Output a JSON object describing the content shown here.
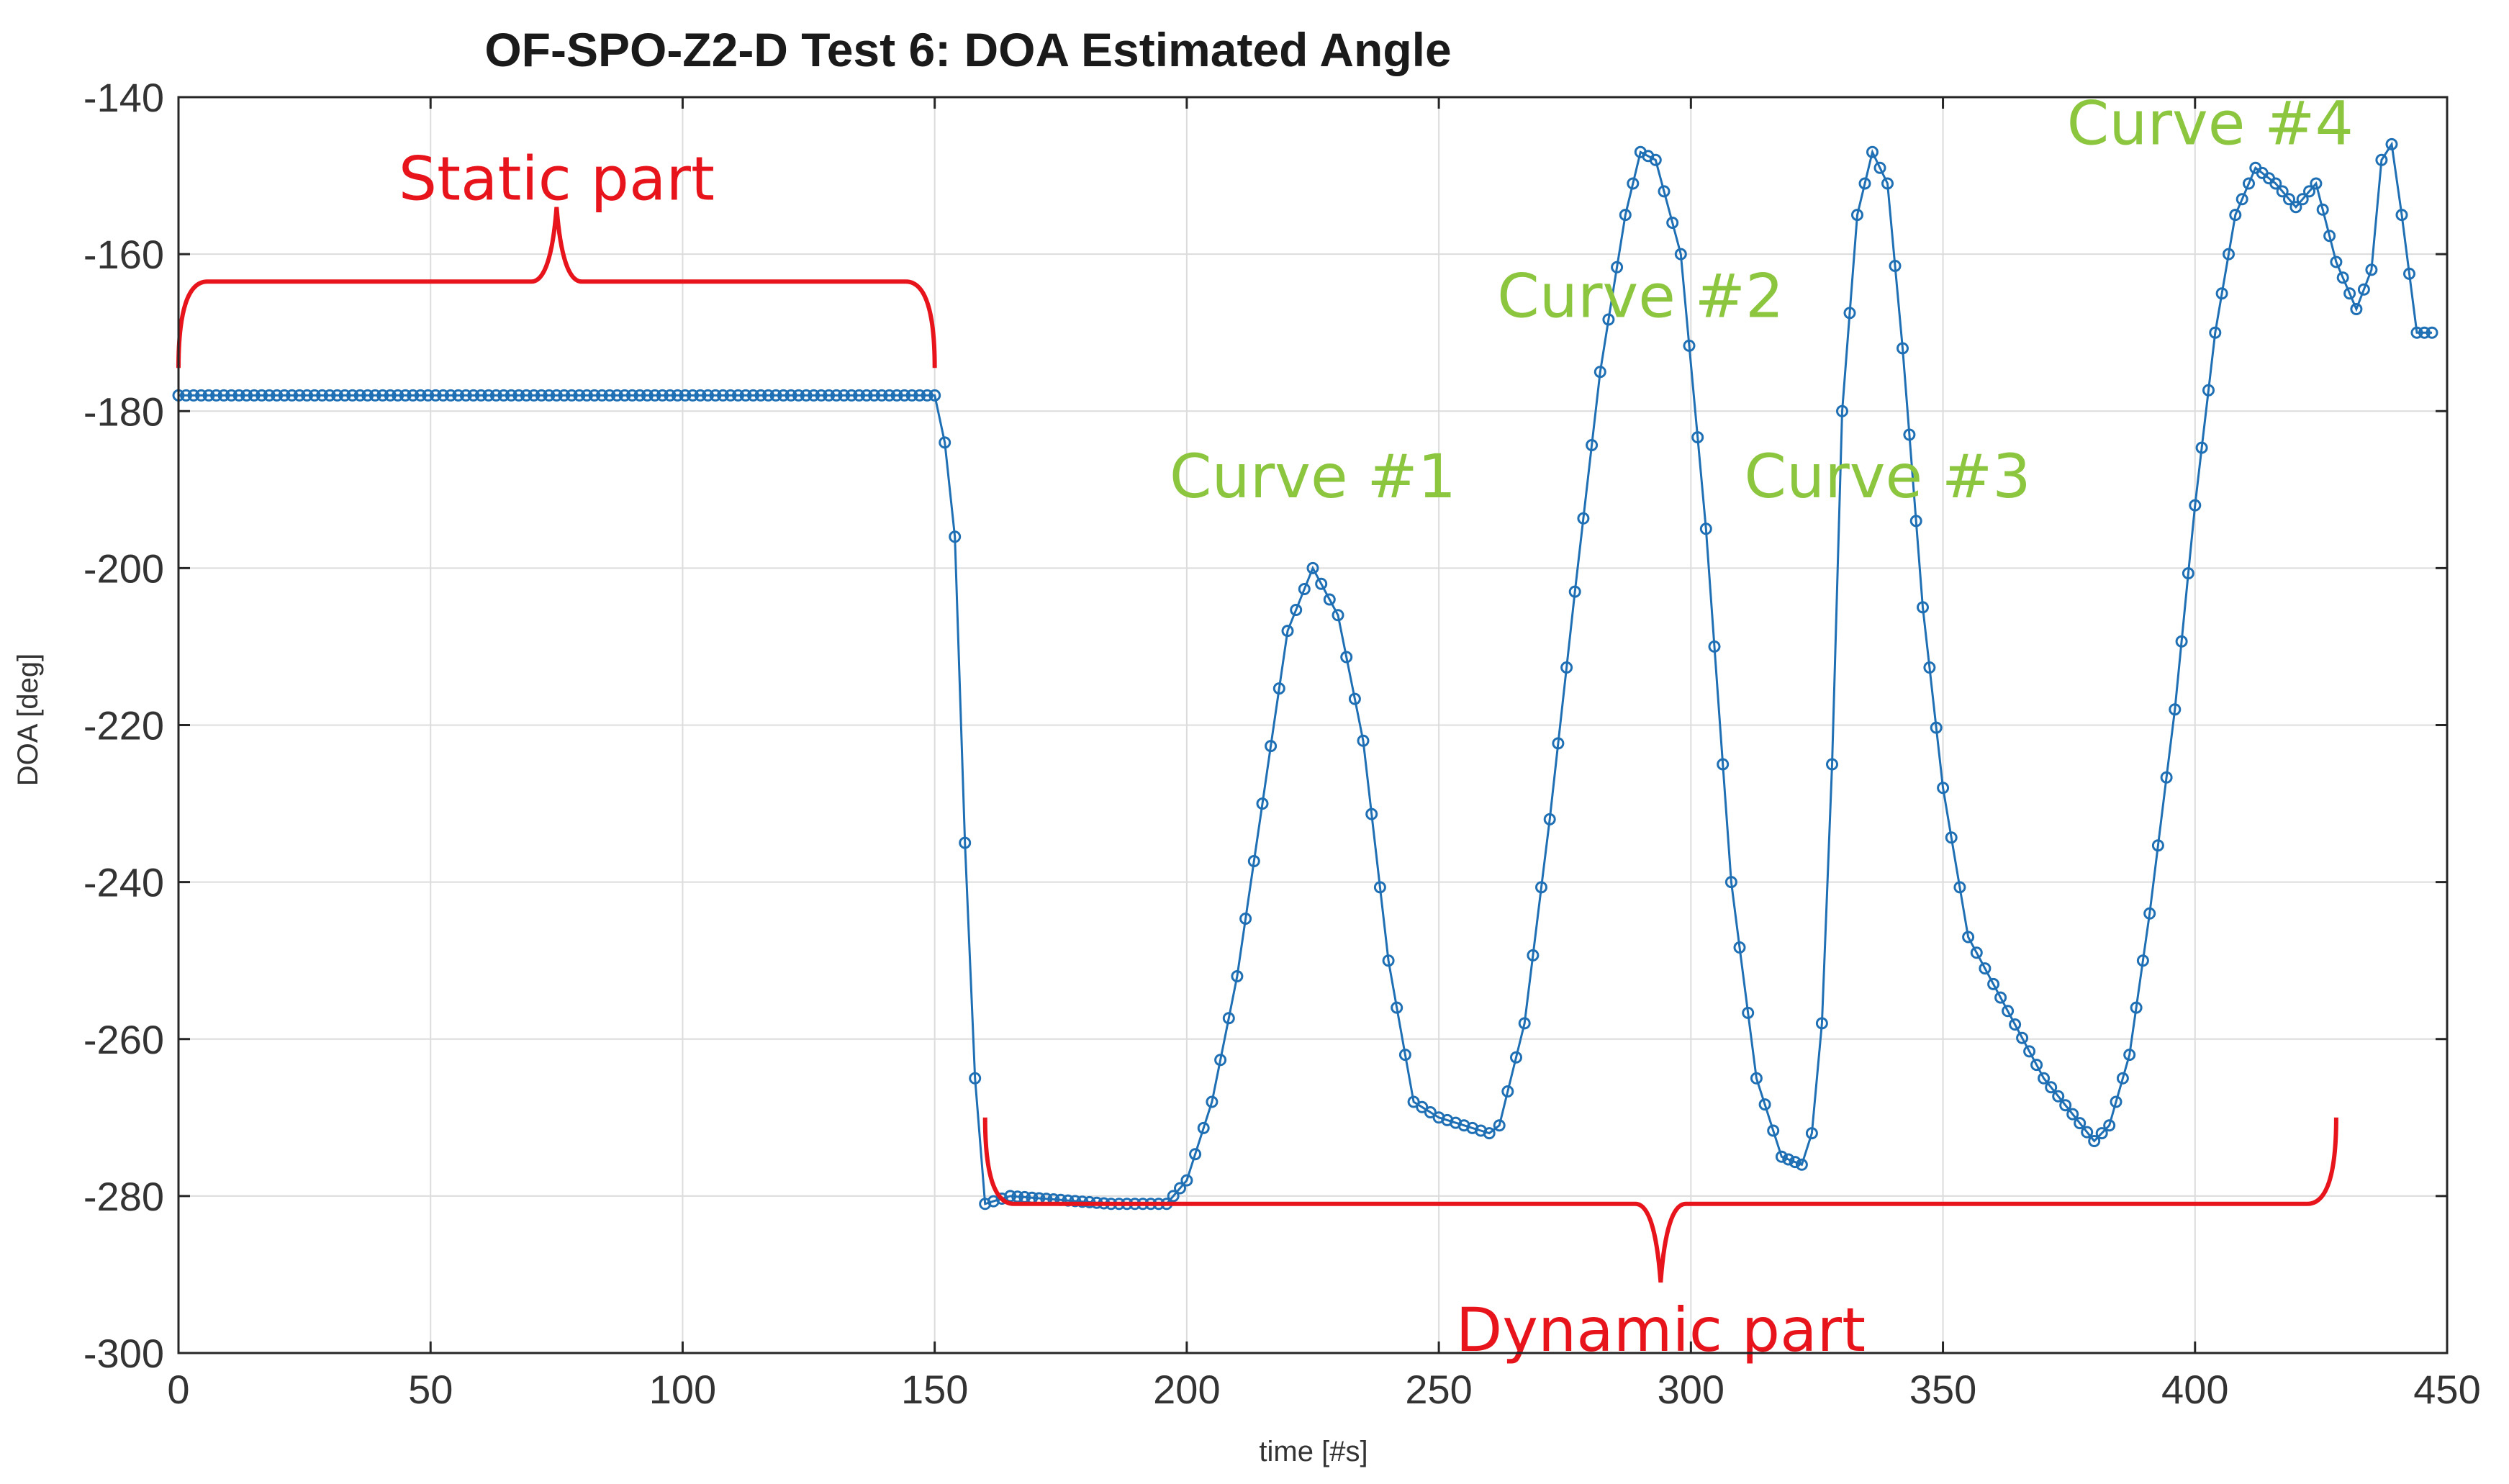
{
  "chart_data": {
    "type": "line",
    "title": "OF-SPO-Z2-D Test 6: DOA Estimated Angle",
    "xlabel": "time [#s]",
    "ylabel": "DOA [deg]",
    "xlim": [
      0,
      450
    ],
    "ylim": [
      -300,
      -140
    ],
    "xticks": [
      0,
      50,
      100,
      150,
      200,
      250,
      300,
      350,
      400,
      450
    ],
    "yticks": [
      -140,
      -160,
      -180,
      -200,
      -220,
      -240,
      -260,
      -280,
      -300
    ],
    "grid": true,
    "marker": "circle",
    "series": [
      {
        "name": "DOA Estimated Angle",
        "color": "#1f6fb4",
        "x": [
          0,
          150,
          152,
          154,
          156,
          158,
          160,
          165,
          175,
          185,
          196,
          200,
          205,
          210,
          215,
          220,
          225,
          230,
          235,
          240,
          245,
          250,
          255,
          260,
          262,
          267,
          272,
          277,
          282,
          287,
          290,
          293,
          298,
          303,
          308,
          313,
          318,
          322,
          324,
          326,
          328,
          330,
          333,
          336,
          339,
          342,
          346,
          350,
          355,
          360,
          370,
          380,
          383,
          387,
          391,
          396,
          400,
          404,
          408,
          412,
          416,
          420,
          424,
          428,
          432,
          435,
          437,
          439,
          441,
          444,
          447
        ],
        "y": [
          -178,
          -178,
          -184,
          -196,
          -235,
          -265,
          -281,
          -280,
          -280.5,
          -281,
          -281,
          -278,
          -268,
          -252,
          -230,
          -208,
          -200,
          -206,
          -222,
          -250,
          -268,
          -270,
          -271,
          -272,
          -271,
          -258,
          -232,
          -203,
          -175,
          -155,
          -147,
          -148,
          -160,
          -195,
          -240,
          -265,
          -275,
          -276,
          -272,
          -258,
          -225,
          -180,
          -155,
          -147,
          -151,
          -172,
          -205,
          -228,
          -247,
          -253,
          -265,
          -273,
          -271,
          -262,
          -244,
          -218,
          -192,
          -170,
          -155,
          -149,
          -151,
          -154,
          -151,
          -161,
          -167,
          -162,
          -148,
          -146,
          -155,
          -170,
          -170
        ]
      }
    ],
    "annotations": [
      {
        "text": "Static part",
        "color": "#e8141c",
        "x_start": 0,
        "x_end": 150,
        "x_tip": 75,
        "y_level": -163.5,
        "y_tip": -154,
        "side": "above"
      },
      {
        "text": "Dynamic part",
        "color": "#e8141c",
        "x_start": 160,
        "x_end": 428,
        "x_tip": 294,
        "y_level": -281,
        "y_tip": -291,
        "side": "below"
      },
      {
        "text": "Curve #1",
        "color": "#8cc63f",
        "x_anchor": 225,
        "y_anchor": -191
      },
      {
        "text": "Curve #2",
        "color": "#8cc63f",
        "x_anchor": 290,
        "y_anchor": -168
      },
      {
        "text": "Curve #3",
        "color": "#8cc63f",
        "x_anchor": 339,
        "y_anchor": -191
      },
      {
        "text": "Curve #4",
        "color": "#8cc63f",
        "x_anchor": 403,
        "y_anchor": -146
      }
    ]
  }
}
